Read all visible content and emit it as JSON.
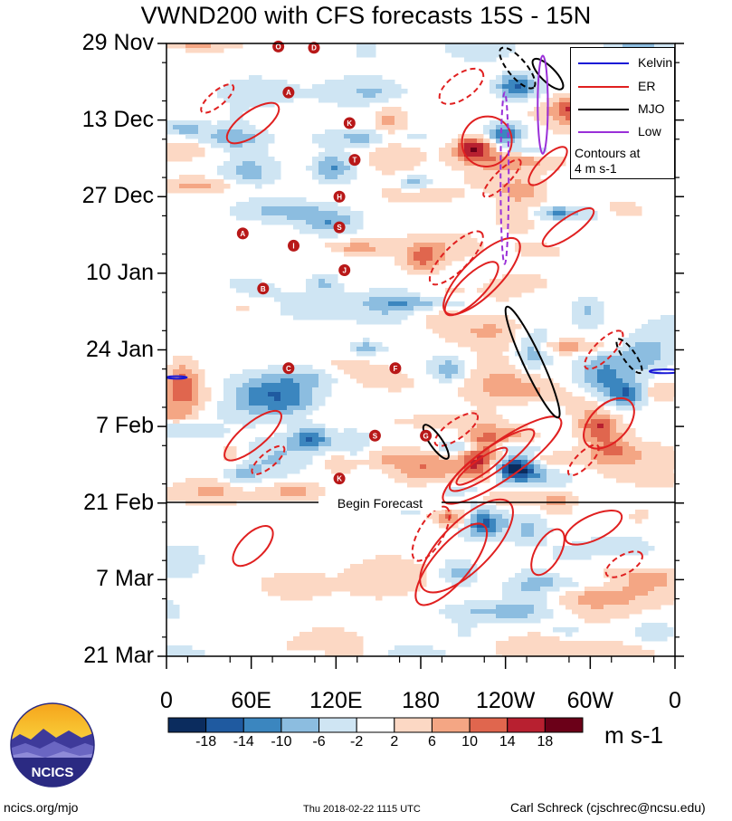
{
  "title": "VWND200 with CFS forecasts  15S - 15N",
  "legend": {
    "items": [
      {
        "label": "Kelvin",
        "color": "#1a1ad6"
      },
      {
        "label": "ER",
        "color": "#e02020"
      },
      {
        "label": "MJO",
        "color": "#000000"
      },
      {
        "label": "Low",
        "color": "#9a30d8"
      }
    ],
    "note_line1": "Contours at",
    "note_line2": "4 m s-1"
  },
  "forecast_label": "Begin Forecast",
  "colorbar": {
    "colors": [
      "#0b2c5e",
      "#1f5aa0",
      "#3b86bf",
      "#8cbde0",
      "#cfe5f3",
      "#ffffff",
      "#fcd8c4",
      "#f4a684",
      "#e0664e",
      "#b82030",
      "#6b0018"
    ],
    "ticks": [
      "-18",
      "-14",
      "-10",
      "-6",
      "-2",
      "2",
      "6",
      "10",
      "14",
      "18"
    ],
    "units": "m s-1"
  },
  "logo_text": "NCICS",
  "footer": {
    "left": "ncics.org/mjo",
    "center": "Thu 2018-02-22 1115 UTC",
    "right": "Carl Schreck (cjschrec@ncsu.edu)"
  },
  "storms": [
    "O",
    "D",
    "A",
    "K",
    "T",
    "H",
    "S",
    "A",
    "I",
    "J",
    "B",
    "C",
    "F",
    "G",
    "S",
    "K"
  ],
  "chart_data": {
    "type": "heatmap",
    "title": "VWND200 with CFS forecasts  15S - 15N",
    "x_ticks": [
      "0",
      "60E",
      "120E",
      "180",
      "120W",
      "60W",
      "0"
    ],
    "x_range_deg_east": [
      0,
      360
    ],
    "y_ticks": [
      "29 Nov",
      "13 Dec",
      "27 Dec",
      "10 Jan",
      "24 Jan",
      "7 Feb",
      "21 Feb",
      "7 Mar",
      "21 Mar"
    ],
    "time_range": [
      "29 Nov",
      "21 Mar"
    ],
    "forecast_start": "21 Feb",
    "variable": "200 hPa meridional wind anomaly",
    "units": "m s-1",
    "levels": [
      -18,
      -14,
      -10,
      -6,
      -2,
      2,
      6,
      10,
      14,
      18
    ],
    "contour_interval": "4 m s-1",
    "contour_series": [
      "Kelvin",
      "ER",
      "MJO",
      "Low"
    ]
  }
}
